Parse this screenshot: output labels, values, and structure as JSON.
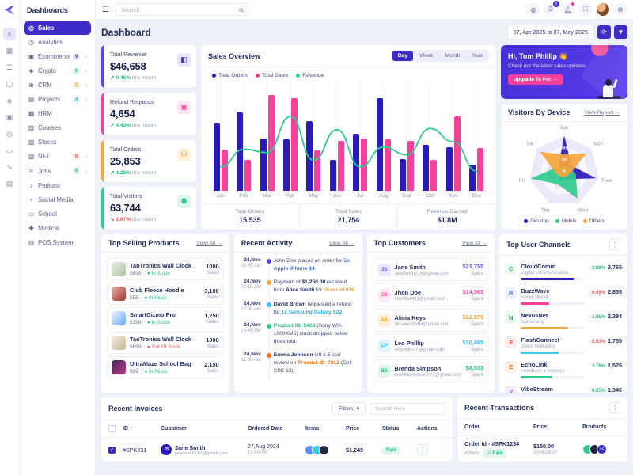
{
  "brand": {
    "name": "Dashboards"
  },
  "rail": {
    "items": [
      {
        "name": "home-icon",
        "glyph": "⌂",
        "active": true
      },
      {
        "name": "apps-grid-icon",
        "glyph": "▦",
        "active": false
      },
      {
        "name": "layers-icon",
        "glyph": "☰",
        "active": false
      },
      {
        "name": "file-icon",
        "glyph": "▢",
        "active": false
      },
      {
        "name": "gem-icon",
        "glyph": "◈",
        "active": false
      },
      {
        "name": "gift-icon",
        "glyph": "▣",
        "active": false
      },
      {
        "name": "compass-icon",
        "glyph": "◎",
        "active": false
      },
      {
        "name": "wallet-icon",
        "glyph": "▭",
        "active": false
      },
      {
        "name": "chart-icon",
        "glyph": "∿",
        "active": false
      },
      {
        "name": "card-icon",
        "glyph": "▤",
        "active": false
      }
    ]
  },
  "sidebar": {
    "title": "Dashboards",
    "items": [
      {
        "label": "Sales",
        "icon": "sales-icon",
        "glyph": "◎",
        "active": true
      },
      {
        "label": "Analytics",
        "icon": "analytics-icon",
        "glyph": "◷"
      },
      {
        "label": "Ecommerce",
        "icon": "ecommerce-icon",
        "glyph": "▣",
        "badge": "9",
        "badge_bg": "#e9e5fb",
        "badge_color": "#4331cc",
        "chevron": true
      },
      {
        "label": "Crypto",
        "icon": "crypto-icon",
        "glyph": "◈",
        "badge": "6",
        "badge_bg": "#def7ec",
        "badge_color": "#1fbf80",
        "chevron": true
      },
      {
        "label": "CRM",
        "icon": "crm-icon",
        "glyph": "⊕",
        "badge": "5",
        "badge_bg": "#feefdb",
        "badge_color": "#f59e2c",
        "chevron": true
      },
      {
        "label": "Projects",
        "icon": "projects-icon",
        "glyph": "▤",
        "badge": "4",
        "badge_bg": "#dff4fd",
        "badge_color": "#2ab3ea",
        "chevron": true
      },
      {
        "label": "HRM",
        "icon": "hrm-icon",
        "glyph": "▦"
      },
      {
        "label": "Courses",
        "icon": "courses-icon",
        "glyph": "▥"
      },
      {
        "label": "Stocks",
        "icon": "stocks-icon",
        "glyph": "▨"
      },
      {
        "label": "NFT",
        "icon": "nft-icon",
        "glyph": "▧",
        "badge": "6",
        "badge_bg": "#fde7e7",
        "badge_color": "#f25555",
        "chevron": true
      },
      {
        "label": "Jobs",
        "icon": "jobs-icon",
        "glyph": "⌗",
        "badge": "8",
        "badge_bg": "#def7ec",
        "badge_color": "#1fbf80",
        "chevron": true
      },
      {
        "label": "Podcast",
        "icon": "podcast-icon",
        "glyph": "♪"
      },
      {
        "label": "Social Media",
        "icon": "social-media-icon",
        "glyph": "⚬"
      },
      {
        "label": "School",
        "icon": "school-icon",
        "glyph": "▭"
      },
      {
        "label": "Medical",
        "icon": "medical-icon",
        "glyph": "✚"
      },
      {
        "label": "POS System",
        "icon": "pos-icon",
        "glyph": "▥"
      }
    ]
  },
  "topbar": {
    "search_placeholder": "Search",
    "cart_badge": "5"
  },
  "page": {
    "title": "Dashboard",
    "date_range": "07, Apr 2025 to 07, May 2025"
  },
  "stats": [
    {
      "label": "Total Revenue",
      "value": "$46,658",
      "pct": "0.45%",
      "direction": "up",
      "suffix": "this month",
      "accent": "#5b43ee",
      "icon": "bag-icon",
      "icon_glyph": "◧",
      "icon_bg": "#e9e5fb",
      "icon_color": "#4331cc"
    },
    {
      "label": "Refund Requests",
      "value": "4,654",
      "pct": "4.43%",
      "direction": "up",
      "suffix": "this month",
      "accent": "#f83f9c",
      "icon": "refund-icon",
      "icon_glyph": "▣",
      "icon_bg": "#fde7f3",
      "icon_color": "#f83f9c"
    },
    {
      "label": "Total Orders",
      "value": "25,853",
      "pct": "1.25%",
      "direction": "up",
      "suffix": "this month",
      "accent": "#f9a33f",
      "icon": "cart-icon",
      "icon_glyph": "⛁",
      "icon_bg": "#fef1dd",
      "icon_color": "#f59e2c"
    },
    {
      "label": "Total Visitors",
      "value": "63,744",
      "pct": "2.07%",
      "direction": "down",
      "suffix": "this month",
      "accent": "#2ecc8e",
      "icon": "users-icon",
      "icon_glyph": "⚉",
      "icon_bg": "#ddf7ec",
      "icon_color": "#1fbf80"
    }
  ],
  "sales_overview": {
    "title": "Sales Overview",
    "tabs": [
      "Day",
      "Week",
      "Month",
      "Year"
    ],
    "active_tab": "Day",
    "legend": [
      {
        "label": "Total Orders",
        "color": "#2a1ab9"
      },
      {
        "label": "Total Sales",
        "color": "#f83f9c"
      },
      {
        "label": "Revenue",
        "color": "#2fcb8e"
      }
    ],
    "chart_data": {
      "type": "bar+line",
      "categories": [
        "Jan",
        "Feb",
        "Mar",
        "Apr",
        "May",
        "Jun",
        "Jul",
        "Aug",
        "Sep",
        "Oct",
        "Nov",
        "Dec"
      ],
      "series": [
        {
          "name": "Total Orders",
          "type": "bar",
          "color": "#2a1ab9",
          "values": [
            62,
            72,
            48,
            47,
            64,
            28,
            52,
            85,
            29,
            42,
            40,
            24
          ]
        },
        {
          "name": "Total Sales",
          "type": "bar",
          "color": "#f83f9c",
          "values": [
            38,
            28,
            88,
            85,
            37,
            46,
            48,
            47,
            46,
            28,
            68,
            39
          ]
        },
        {
          "name": "Revenue",
          "type": "line",
          "color": "#2fcb8e",
          "values": [
            22,
            38,
            35,
            68,
            28,
            56,
            22,
            40,
            33,
            57,
            45,
            18
          ]
        }
      ],
      "ylim": [
        0,
        100
      ]
    },
    "totals": [
      {
        "label": "Total Orders",
        "value": "15,535"
      },
      {
        "label": "Total Sales",
        "value": "21,754"
      },
      {
        "label": "Revenue Earned",
        "value": "$1.8M"
      }
    ]
  },
  "banner": {
    "greeting": "Hi, Tom Phillip 👋",
    "message": "Check out the latest sales updates.",
    "cta": "Upgrade To Pro →"
  },
  "visitors": {
    "title": "Visitors By Device",
    "link": "View Report →",
    "chart_data": {
      "type": "radar",
      "categories": [
        "Sun",
        "Mon",
        "Tues",
        "Wed",
        "Thu",
        "Fri",
        "Sat"
      ],
      "series": [
        {
          "name": "Desktop",
          "color": "#2a1ab9",
          "values": [
            60,
            15,
            55,
            15,
            18,
            10,
            12
          ]
        },
        {
          "name": "Mobile",
          "color": "#2fcb8e",
          "values": [
            8,
            10,
            20,
            52,
            25,
            58,
            12
          ]
        },
        {
          "name": "Others",
          "color": "#f6a63b",
          "values": [
            28,
            48,
            12,
            10,
            12,
            15,
            52
          ]
        }
      ],
      "ticks": [
        0,
        20,
        40,
        60
      ],
      "max": 60
    }
  },
  "products": {
    "title": "Top Selling Products",
    "link": "View All →",
    "items": [
      {
        "name": "TaoTronics Wall Clock",
        "price": "$699",
        "stock": "In Stock",
        "stock_color": "#1fbf80",
        "sales": "1000",
        "unit": "Sales",
        "thumb1": "#e7efe3",
        "thumb2": "#aec4a6"
      },
      {
        "name": "Club Fleece Hoodie",
        "price": "$55",
        "stock": "In Stock",
        "stock_color": "#1fbf80",
        "sales": "3,100",
        "unit": "Sales",
        "thumb1": "#e8b2ad",
        "thumb2": "#a03228"
      },
      {
        "name": "SmartGizmo Pro",
        "price": "$199",
        "stock": "In Stock",
        "stock_color": "#1fbf80",
        "sales": "1,250",
        "unit": "Sales",
        "thumb1": "#eef4fe",
        "thumb2": "#6aa7f8"
      },
      {
        "name": "TaoTronics Wall Clock",
        "price": "$699",
        "stock": "Out Of Stock",
        "stock_color": "#f25555",
        "sales": "1000",
        "unit": "Sales",
        "thumb1": "#f3ede2",
        "thumb2": "#c9b795"
      },
      {
        "name": "UltraMaze School Bag",
        "price": "$99",
        "stock": "In Stock",
        "stock_color": "#1fbf80",
        "sales": "2,150",
        "unit": "Sales",
        "thumb1": "#3c2b63",
        "thumb2": "#c5357e"
      }
    ]
  },
  "activity": {
    "title": "Recent Activity",
    "link": "View All →",
    "items": [
      {
        "date": "24,Nov",
        "time": "08:45 AM",
        "dot": "#5b43ee",
        "segments": [
          {
            "t": "John Doe placed an order for "
          },
          {
            "t": "5x Apple iPhone 14",
            "c": "#3b6ef5",
            "b": true
          }
        ]
      },
      {
        "date": "24,Nov",
        "time": "09:15 AM",
        "dot": "#f6a63b",
        "segments": [
          {
            "t": "Payment of "
          },
          {
            "t": "$1,250.00",
            "b": true
          },
          {
            "t": " received from "
          },
          {
            "t": "Alice Smith",
            "b": true
          },
          {
            "t": " for "
          },
          {
            "t": "Order #1020",
            "c": "#f59e2c",
            "b": true
          },
          {
            "t": "."
          }
        ]
      },
      {
        "date": "24,Nov",
        "time": "10:00 AM",
        "dot": "#41c6f3",
        "segments": [
          {
            "t": "David Brown",
            "b": true
          },
          {
            "t": " requested a refund for "
          },
          {
            "t": "1x Samsung Galaxy S22",
            "c": "#2ab3ea",
            "b": true
          },
          {
            "t": "."
          }
        ]
      },
      {
        "date": "24,Nov",
        "time": "10:45 AM",
        "dot": "#2fcb8e",
        "segments": [
          {
            "t": "Product ID: 5409",
            "c": "#1fbf80",
            "b": true
          },
          {
            "t": " (Sony WH-1000XM5) stock dropped below threshold."
          }
        ]
      },
      {
        "date": "24,Nov",
        "time": "11:30 AM",
        "dot": "#f97316",
        "segments": [
          {
            "t": "Emma Johnson",
            "b": true
          },
          {
            "t": " left a 5-star review on "
          },
          {
            "t": "Product ID: 7312",
            "c": "#f97316",
            "b": true
          },
          {
            "t": " (Dell XPS 13)."
          }
        ]
      }
    ]
  },
  "customers": {
    "title": "Top Customers",
    "link": "View All →",
    "items": [
      {
        "initials": "JS",
        "name": "Jane Smith",
        "email": "janesmith215@gmail.com",
        "amount": "$23,755",
        "unit": "Spent",
        "color": "#6a4ff0",
        "bg": "#ece7fd"
      },
      {
        "initials": "JD",
        "name": "Jhon Doe",
        "email": "jhondoe431@gmail.com",
        "amount": "$14,563",
        "unit": "Spent",
        "color": "#f83f9c",
        "bg": "#fde7f3"
      },
      {
        "initials": "AK",
        "name": "Alicia Keys",
        "email": "aliciakeys986@gmail.com",
        "amount": "$12,075",
        "unit": "Spent",
        "color": "#f59e2c",
        "bg": "#feefdb"
      },
      {
        "initials": "LP",
        "name": "Leo Phillip",
        "email": "leophillip77@gmail.com",
        "amount": "$10,485",
        "unit": "Spent",
        "color": "#2ab3ea",
        "bg": "#dff4fd"
      },
      {
        "initials": "BS",
        "name": "Brenda Simpson",
        "email": "brendasimpson075@gmail.com",
        "amount": "$8,533",
        "unit": "Spent",
        "color": "#1fbf80",
        "bg": "#def7ec"
      }
    ]
  },
  "channels": {
    "title": "Top User Channels",
    "items": [
      {
        "name": "CloudComm",
        "category": "Digital Communication",
        "pct": "2.98%",
        "direction": "up",
        "value": "3,765",
        "bar_color": "#2a1ab9",
        "bar_pct": 85,
        "icon_bg": "#eafaf1",
        "icon_color": "#27b563",
        "letter": "C"
      },
      {
        "name": "BuzzWave",
        "category": "Social Media",
        "pct": "6.45%",
        "direction": "down",
        "value": "2,855",
        "bar_color": "#f83f9c",
        "bar_pct": 45,
        "icon_bg": "#eef2fe",
        "icon_color": "#4f6df5",
        "letter": "B"
      },
      {
        "name": "NexusNet",
        "category": "Networking",
        "pct": "1.95%",
        "direction": "up",
        "value": "2,384",
        "bar_color": "#f6a63b",
        "bar_pct": 75,
        "icon_bg": "#eafaf1",
        "icon_color": "#27ae60",
        "letter": "N"
      },
      {
        "name": "FlashConnect",
        "category": "Direct Marketing",
        "pct": "5.91%",
        "direction": "down",
        "value": "1,755",
        "bar_color": "#41c6f3",
        "bar_pct": 60,
        "icon_bg": "#feecec",
        "icon_color": "#e7413a",
        "letter": "F"
      },
      {
        "name": "EchoLink",
        "category": "Feedback & Surveys",
        "pct": "3.75%",
        "direction": "up",
        "value": "1,525",
        "bar_color": "#2fcb8e",
        "bar_pct": 50,
        "icon_bg": "#fef0e6",
        "icon_color": "#f2662a",
        "letter": "E"
      },
      {
        "name": "VibeStream",
        "category": "Content Distribution",
        "pct": "0.95%",
        "direction": "up",
        "value": "1,345",
        "bar_color": "#fb7185",
        "bar_pct": 35,
        "icon_bg": "#f1ecfe",
        "icon_color": "#8b5cf6",
        "letter": "V"
      }
    ]
  },
  "invoices": {
    "title": "Recent Invoices",
    "filters_label": "Filters",
    "search_placeholder": "Search Here",
    "columns": [
      "ID",
      "Customer",
      "Ordered Date",
      "Items",
      "Price",
      "Status",
      "Actions"
    ],
    "rows": [
      {
        "checked": true,
        "id": "#SPK231",
        "name": "Jane Smith",
        "email": "janesmith215@gmail.com",
        "initials": "JS",
        "avatar_bg": "#2a1ab9",
        "date": "27,Aug 2024",
        "time": "12:45PM",
        "items": [
          "#5b8ef7",
          "#36cfe3",
          "#23283f"
        ],
        "price": "$1,249",
        "status": "Paid",
        "status_color": "#1fbf80",
        "status_bg": "#def7ec"
      }
    ]
  },
  "transactions": {
    "title": "Recent Transactions",
    "columns": [
      "Order",
      "Price",
      "Products"
    ],
    "rows": [
      {
        "order_id": "Order Id - #SPK1234",
        "items": "4 Items",
        "status": "✓ Paid",
        "status_color": "#1fbf80",
        "status_bg": "#def7ec",
        "price": "$150.00",
        "date": "2024-08-27",
        "products": [
          "#2fcb8e",
          "#23283f"
        ],
        "more": "+2"
      }
    ]
  }
}
